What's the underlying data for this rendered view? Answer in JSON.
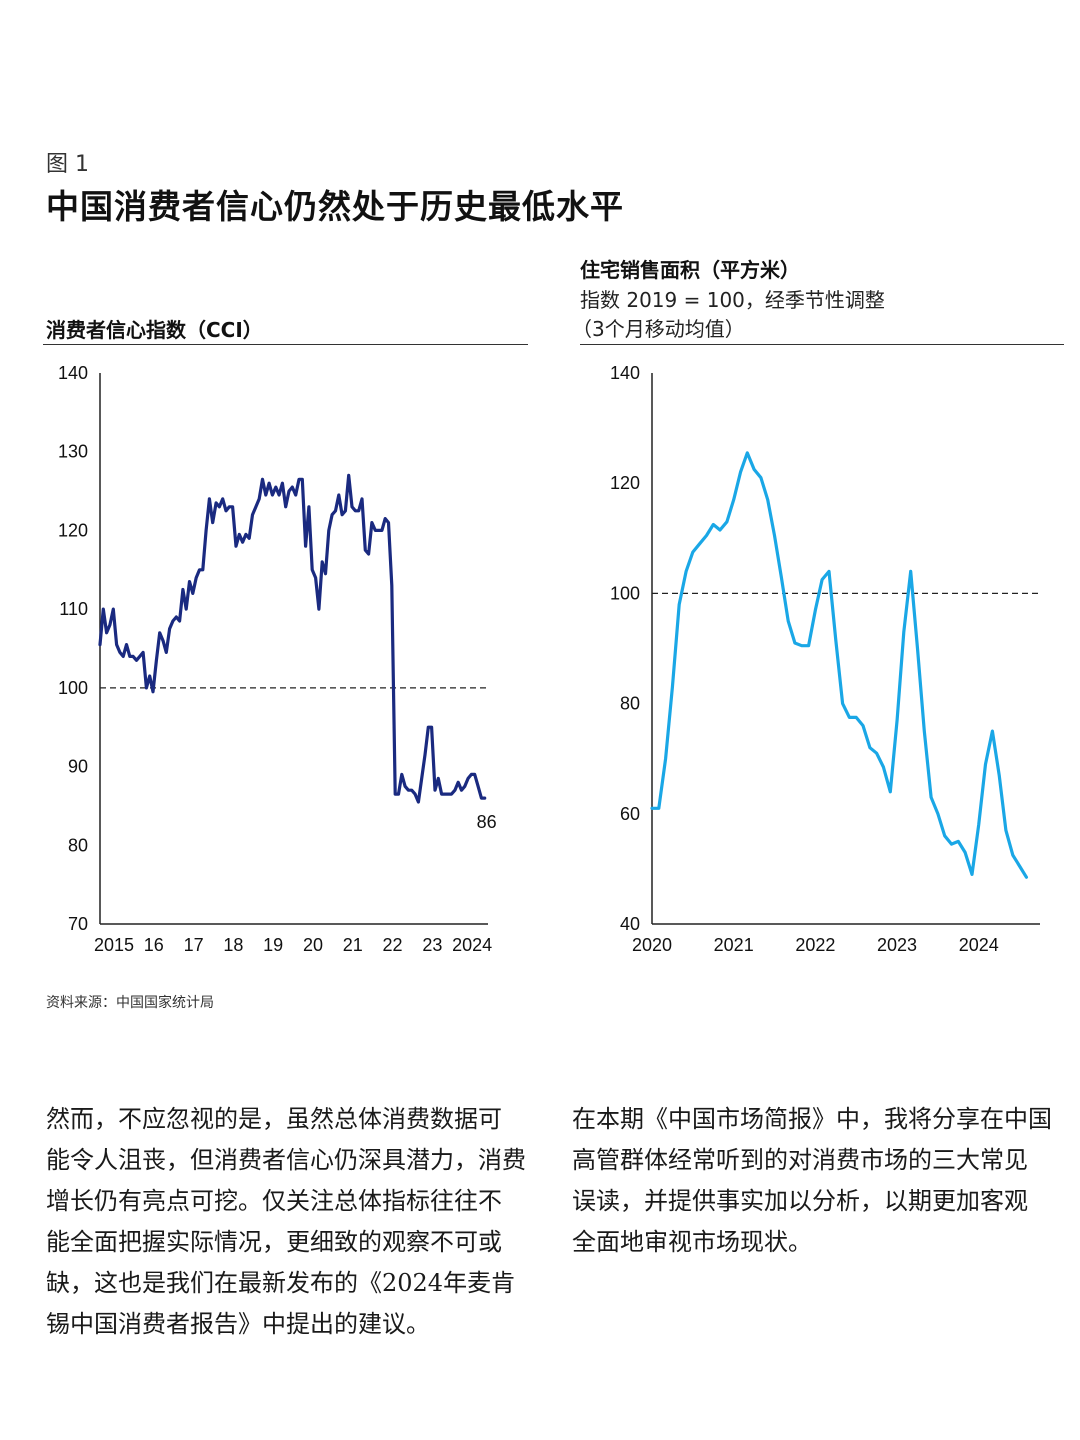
{
  "figure": {
    "label": "图 1",
    "title": "中国消费者信心仍然处于历史最低水平"
  },
  "left_panel": {
    "title": "消费者信心指数（CCI）"
  },
  "right_panel": {
    "title": "住宅销售面积（平方米）",
    "subtitle_line1": "指数 2019 = 100，经季节性调整",
    "subtitle_line2": "（3个月移动均值）"
  },
  "source": "资料来源：中国国家统计局",
  "paragraphs": {
    "left": [
      "然而，不应忽视的是，虽然总体消费数据可",
      "能令人沮丧，但消费者信心仍深具潜力，消费",
      "增长仍有亮点可挖。仅关注总体指标往往不",
      "能全面把握实际情况，更细致的观察不可或",
      "缺，这也是我们在最新发布的《2024年麦肯",
      "锡中国消费者报告》中提出的建议。"
    ],
    "right": [
      "在本期《中国市场简报》中，我将分享在中国",
      "高管群体经常听到的对消费市场的三大常见",
      "误读，并提供事实加以分析，以期更加客观",
      "全面地审视市场现状。"
    ]
  },
  "colors": {
    "cci_line": "#1a2a80",
    "housing_line": "#1aa7e6"
  },
  "chart_data": [
    {
      "type": "line",
      "title": "消费者信心指数（CCI）",
      "ylim": [
        70,
        140
      ],
      "yticks": [
        140,
        130,
        120,
        110,
        100,
        90,
        80,
        70
      ],
      "xlim": [
        2015,
        2024.75
      ],
      "xticks": [
        2015,
        2016,
        2017,
        2018,
        2019,
        2020,
        2021,
        2022,
        2023,
        2024
      ],
      "xticklabels": [
        "2015",
        "16",
        "17",
        "18",
        "19",
        "20",
        "21",
        "22",
        "23",
        "2024"
      ],
      "reference_line": 100,
      "end_label": "86",
      "series": [
        {
          "name": "CCI",
          "x": [
            2015.0,
            2015.083,
            2015.167,
            2015.25,
            2015.333,
            2015.417,
            2015.5,
            2015.583,
            2015.667,
            2015.75,
            2015.833,
            2015.917,
            2016.0,
            2016.083,
            2016.167,
            2016.25,
            2016.333,
            2016.417,
            2016.5,
            2016.583,
            2016.667,
            2016.75,
            2016.833,
            2016.917,
            2017.0,
            2017.083,
            2017.167,
            2017.25,
            2017.333,
            2017.417,
            2017.5,
            2017.583,
            2017.667,
            2017.75,
            2017.833,
            2017.917,
            2018.0,
            2018.083,
            2018.167,
            2018.25,
            2018.333,
            2018.417,
            2018.5,
            2018.583,
            2018.667,
            2018.75,
            2018.833,
            2018.917,
            2019.0,
            2019.083,
            2019.167,
            2019.25,
            2019.333,
            2019.417,
            2019.5,
            2019.583,
            2019.667,
            2019.75,
            2019.833,
            2019.917,
            2020.0,
            2020.083,
            2020.167,
            2020.25,
            2020.333,
            2020.417,
            2020.5,
            2020.583,
            2020.667,
            2020.75,
            2020.833,
            2020.917,
            2021.0,
            2021.083,
            2021.167,
            2021.25,
            2021.333,
            2021.417,
            2021.5,
            2021.583,
            2021.667,
            2021.75,
            2021.833,
            2021.917,
            2022.0,
            2022.083,
            2022.167,
            2022.25,
            2022.333,
            2022.417,
            2022.5,
            2022.583,
            2022.667,
            2022.75,
            2022.833,
            2022.917,
            2023.0,
            2023.083,
            2023.167,
            2023.25,
            2023.333,
            2023.417,
            2023.5,
            2023.583,
            2023.667,
            2023.75,
            2023.833,
            2023.917,
            2024.0,
            2024.083,
            2024.167,
            2024.25,
            2024.333,
            2024.417,
            2024.5,
            2024.583,
            2024.667
          ],
          "values": [
            105.5,
            110,
            107,
            108,
            110,
            105.5,
            104.5,
            104,
            105.5,
            104,
            104,
            103.5,
            104,
            104.5,
            100,
            101.5,
            99.5,
            103.5,
            107,
            106,
            104.5,
            107.5,
            108.5,
            109,
            108.5,
            112.5,
            110,
            113.5,
            112,
            114,
            115,
            115,
            120,
            124,
            121,
            123.5,
            123,
            124,
            122.5,
            123,
            123,
            118,
            119.5,
            118.5,
            119.5,
            119,
            122,
            123,
            124,
            126.5,
            124.5,
            126,
            124.5,
            125.5,
            124.5,
            126,
            123,
            125,
            125.5,
            124.5,
            126.5,
            126.5,
            118,
            123,
            115,
            114,
            110,
            116,
            114.5,
            120,
            122,
            122.5,
            124.5,
            122,
            122.5,
            127,
            123,
            122.5,
            122.5,
            124,
            117.5,
            117,
            121,
            120,
            120,
            120,
            121.5,
            121,
            113,
            86.5,
            86.5,
            89,
            87.5,
            87,
            87,
            86.5,
            85.5,
            88.5,
            91.5,
            95,
            95,
            87,
            88.5,
            86.5,
            86.5,
            86.5,
            86.5,
            87,
            88,
            87,
            87.5,
            88.5,
            89,
            89,
            87.5,
            86,
            86
          ]
        }
      ]
    },
    {
      "type": "line",
      "title": "住宅销售面积（平方米）",
      "subtitle": "指数 2019 = 100，经季节性调整（3个月移动均值）",
      "ylim": [
        40,
        140
      ],
      "yticks": [
        140,
        120,
        100,
        80,
        60,
        40
      ],
      "xlim": [
        2020,
        2024.75
      ],
      "xticks": [
        2020,
        2021,
        2022,
        2023,
        2024
      ],
      "xticklabels": [
        "2020",
        "2021",
        "2022",
        "2023",
        "2024"
      ],
      "reference_line": 100,
      "series": [
        {
          "name": "住宅销售面积",
          "x": [
            2020.0,
            2020.083,
            2020.167,
            2020.25,
            2020.333,
            2020.417,
            2020.5,
            2020.583,
            2020.667,
            2020.75,
            2020.833,
            2020.917,
            2021.0,
            2021.083,
            2021.167,
            2021.25,
            2021.333,
            2021.417,
            2021.5,
            2021.583,
            2021.667,
            2021.75,
            2021.833,
            2021.917,
            2022.0,
            2022.083,
            2022.167,
            2022.25,
            2022.333,
            2022.417,
            2022.5,
            2022.583,
            2022.667,
            2022.75,
            2022.833,
            2022.917,
            2023.0,
            2023.083,
            2023.167,
            2023.25,
            2023.333,
            2023.417,
            2023.5,
            2023.583,
            2023.667,
            2023.75,
            2023.833,
            2023.917,
            2024.0,
            2024.083,
            2024.167,
            2024.25,
            2024.333,
            2024.417,
            2024.5,
            2024.583
          ],
          "values": [
            61,
            61,
            70,
            83,
            98,
            104,
            107.5,
            109,
            110.5,
            112.5,
            111.5,
            113,
            117,
            122,
            125.5,
            122.5,
            121,
            117,
            110.5,
            103,
            95,
            91,
            90.5,
            90.5,
            97,
            102.5,
            104,
            91.5,
            80,
            77.5,
            77.5,
            76,
            72,
            71,
            68.5,
            64,
            77,
            93,
            104,
            90,
            75,
            63,
            60,
            56,
            54.5,
            55,
            53,
            49,
            58,
            69,
            75,
            67,
            57,
            52.5,
            50.5,
            48.5
          ]
        }
      ]
    }
  ]
}
